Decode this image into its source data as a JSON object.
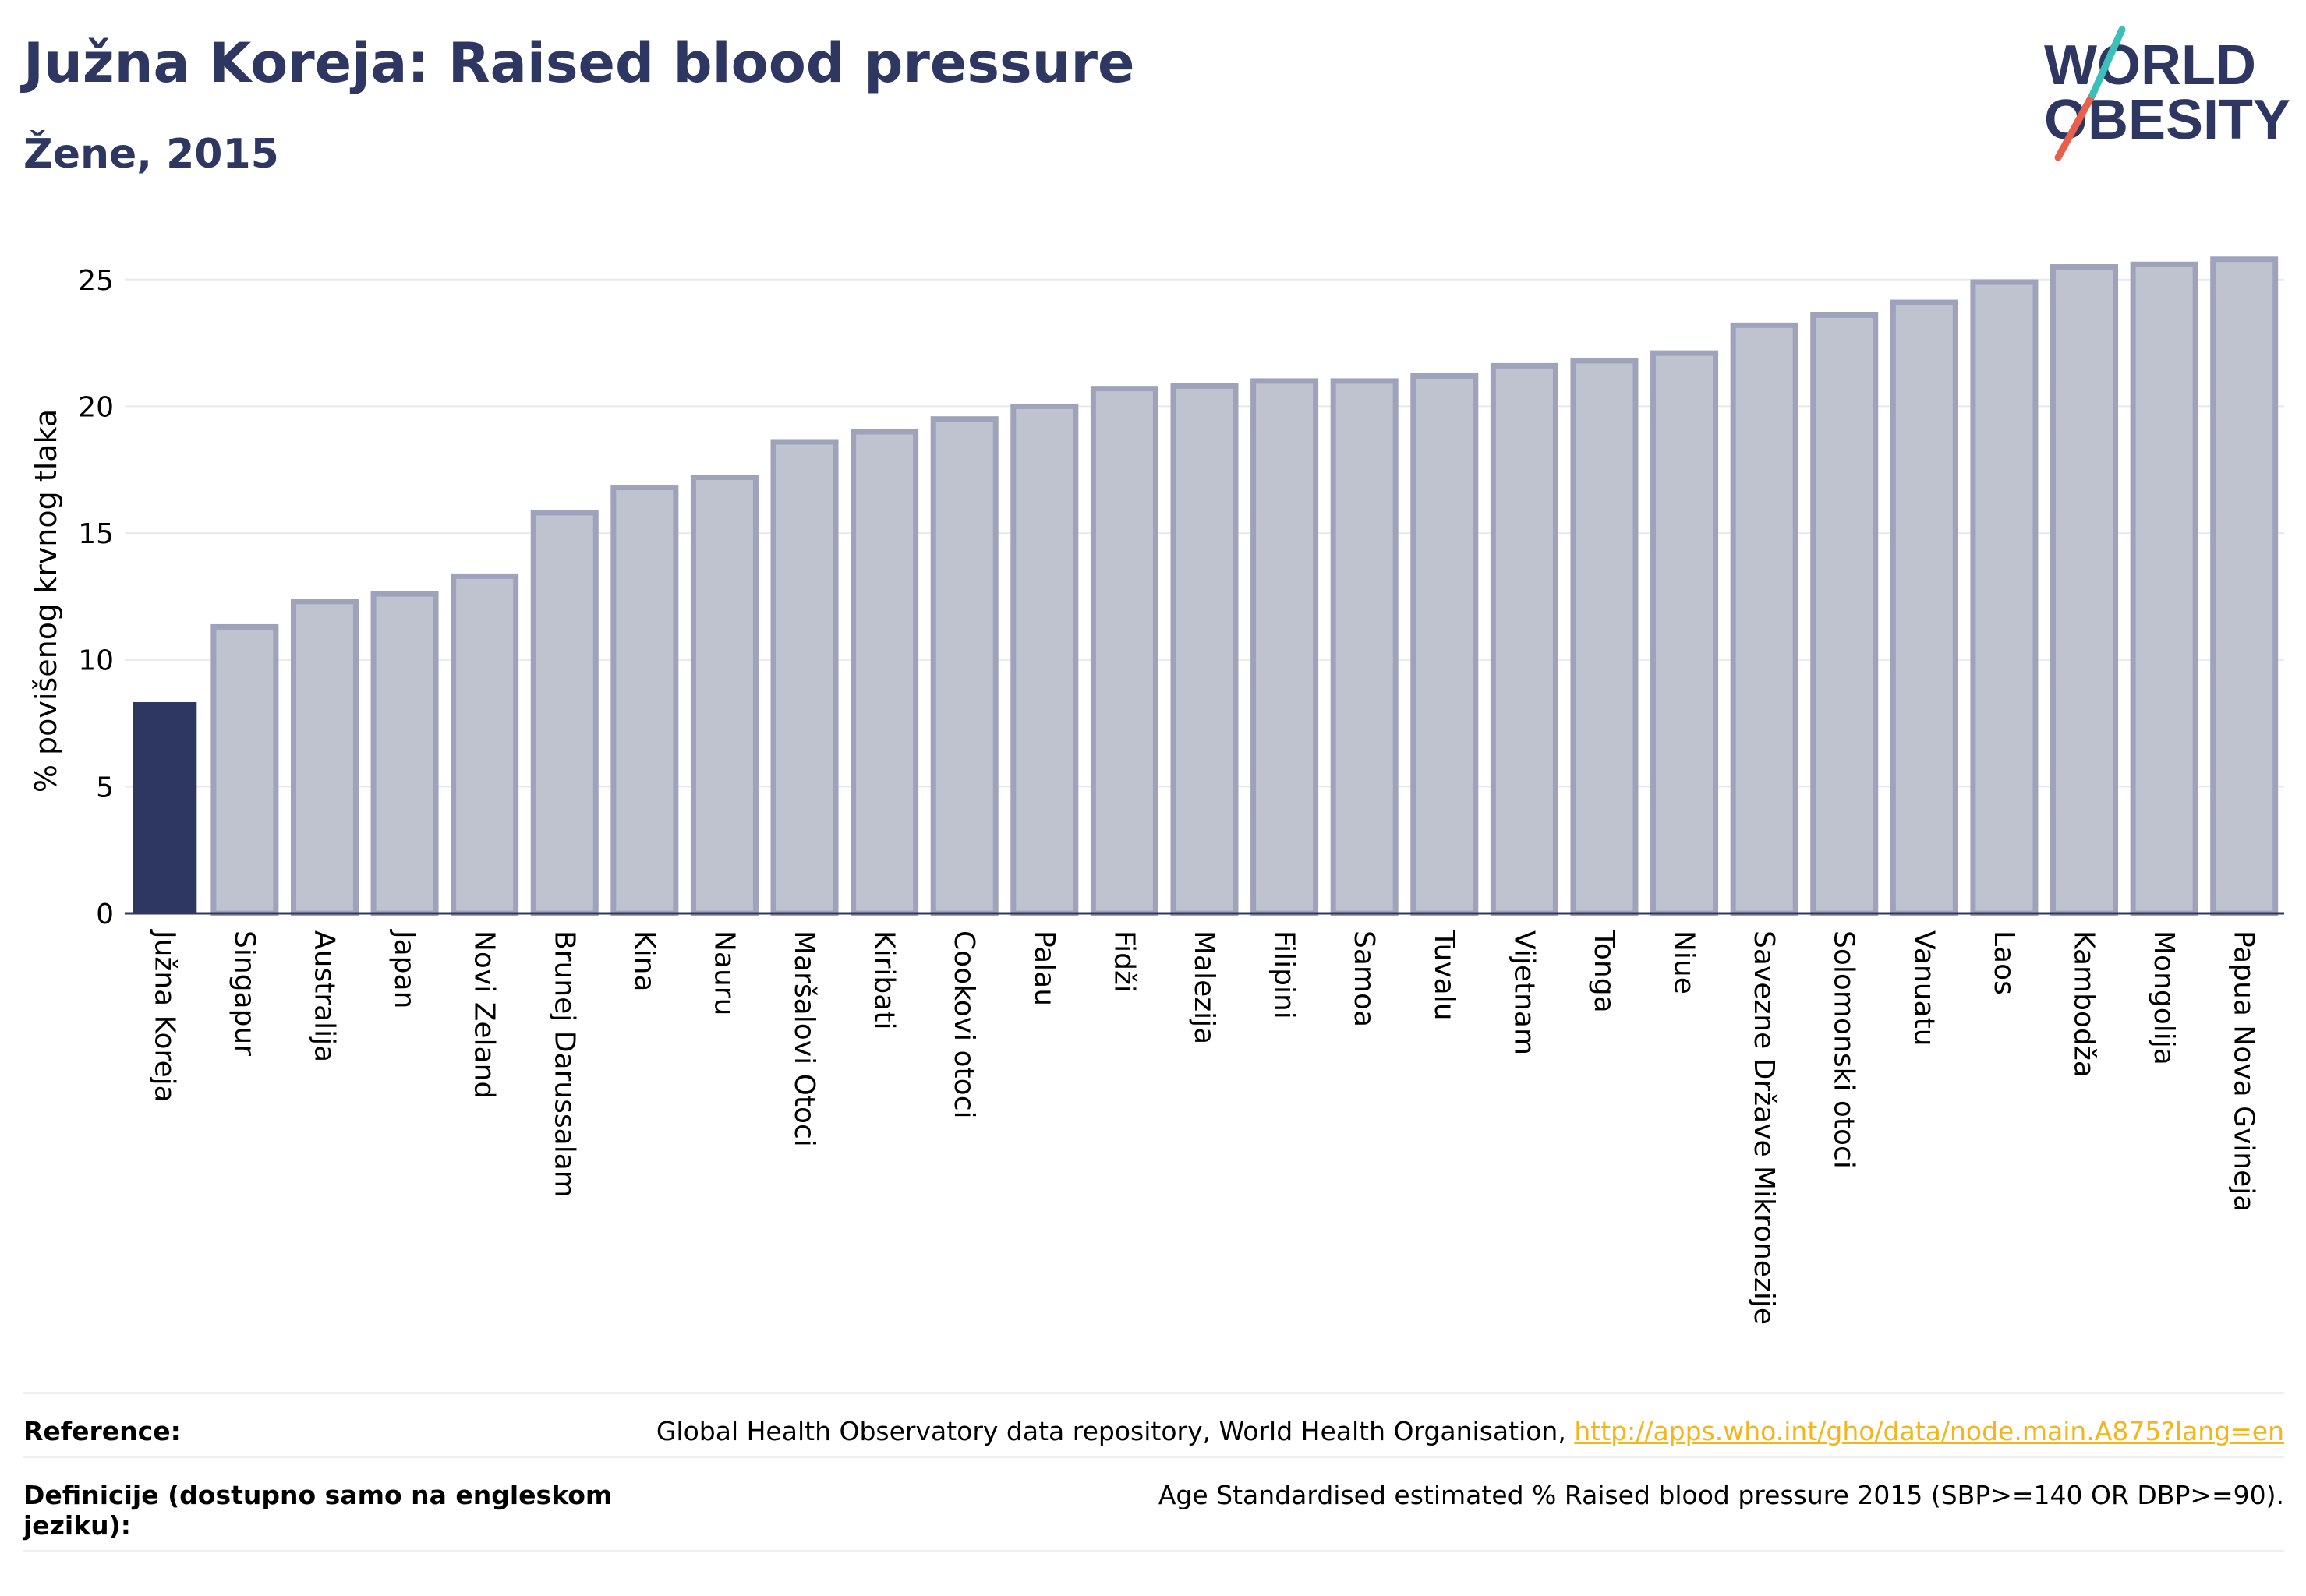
{
  "header": {
    "title": "Južna Koreja: Raised blood pressure",
    "subtitle": "Žene, 2015"
  },
  "logo": {
    "line1": "WORLD",
    "line2": "OBESITY",
    "text_color": "#2d3761",
    "slash_colors": [
      "#e8604c",
      "#3bbfb8"
    ]
  },
  "colors": {
    "highlight_bar": "#2d3761",
    "other_bar_fill": "#bfc3d0",
    "other_bar_stroke": "#9ea3bb",
    "gridline": "#e6e8ef",
    "link": "#f4b41a"
  },
  "chart_data": {
    "type": "bar",
    "title": "Južna Koreja: Raised blood pressure",
    "subtitle": "Žene, 2015",
    "ylabel": "% povišenog krvnog tlaka",
    "xlabel": "",
    "ylim": [
      0,
      26.5
    ],
    "yticks": [
      0,
      5,
      10,
      15,
      20,
      25
    ],
    "grid": true,
    "highlight": "Južna Koreja",
    "categories": [
      "Južna Koreja",
      "Singapur",
      "Australija",
      "Japan",
      "Novi Zeland",
      "Brunej Darussalam",
      "Kina",
      "Nauru",
      "Maršalovi Otoci",
      "Kiribati",
      "Cookovi otoci",
      "Palau",
      "Fidži",
      "Malezija",
      "Filipini",
      "Samoa",
      "Tuvalu",
      "Vijetnam",
      "Tonga",
      "Niue",
      "Savezne Države Mikronezije",
      "Solomonski otoci",
      "Vanuatu",
      "Laos",
      "Kambodža",
      "Mongolija",
      "Papua Nova Gvineja"
    ],
    "values": [
      8.3,
      11.3,
      12.3,
      12.6,
      13.3,
      15.8,
      16.8,
      17.2,
      18.6,
      19.0,
      19.5,
      20.0,
      20.7,
      20.8,
      21.0,
      21.0,
      21.2,
      21.6,
      21.8,
      22.1,
      23.2,
      23.6,
      24.1,
      24.9,
      25.5,
      25.6,
      25.8
    ]
  },
  "footer": {
    "reference_label": "Reference:",
    "reference_text": "Global Health Observatory data repository, World Health Organisation,",
    "reference_link": "http://apps.who.int/gho/data/node.main.A875?lang=en",
    "definition_label": "Definicije (dostupno samo na engleskom jeziku):",
    "definition_text": "Age Standardised estimated % Raised blood pressure 2015 (SBP>=140 OR DBP>=90)."
  }
}
